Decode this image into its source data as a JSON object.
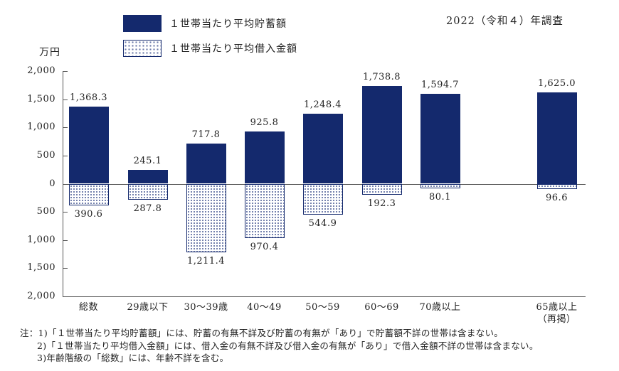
{
  "header": {
    "survey_year": "2022（令和４）年調査"
  },
  "chart_data": {
    "type": "bar",
    "title": "2022（令和４）年調査",
    "unit": "万円",
    "categories": [
      "総数",
      "29歳以下",
      "30〜39歳",
      "40〜49",
      "50〜59",
      "60〜69",
      "70歳以上",
      "65歳以上\n（再掲）"
    ],
    "series": [
      {
        "name": "１世帯当たり平均貯蓄額",
        "direction": "up",
        "values": [
          1368.3,
          245.1,
          717.8,
          925.8,
          1248.4,
          1738.8,
          1594.7,
          1625.0
        ]
      },
      {
        "name": "１世帯当たり平均借入金額",
        "direction": "down",
        "values": [
          390.6,
          287.8,
          1211.4,
          970.4,
          544.9,
          192.3,
          80.1,
          96.6
        ]
      }
    ],
    "ylim": [
      -2000,
      2000
    ],
    "yticks": [
      2000,
      1500,
      1000,
      500,
      0,
      -500,
      -1000,
      -1500,
      -2000
    ],
    "grid": false,
    "legend_position": "top-left",
    "colors": {
      "savings_fill": "#14296d",
      "borrowings_border": "#14296d",
      "axis_line": "#555555",
      "text": "#222222"
    }
  },
  "notes": {
    "prefix": "注：",
    "items": [
      "1)「１世帯当たり平均貯蓄額」には、貯蓄の有無不詳及び貯蓄の有無が「あり」で貯蓄額不詳の世帯は含まない。",
      "2)「１世帯当たり平均借入金額」には、借入金の有無不詳及び借入金の有無が「あり」で借入金額不詳の世帯は含まない。",
      "3)年齢階級の「総数」には、年齢不詳を含む。"
    ]
  }
}
